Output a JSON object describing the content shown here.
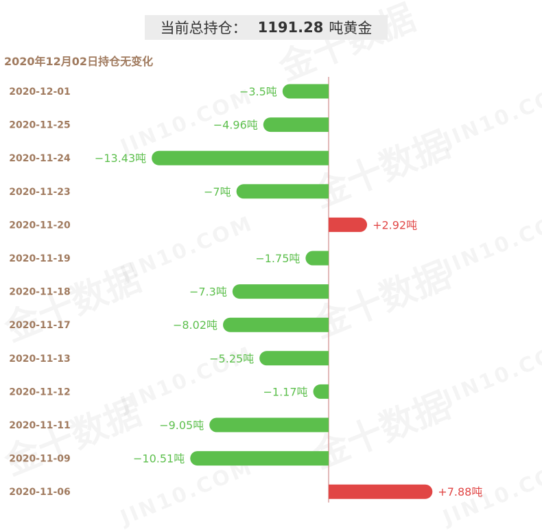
{
  "header": {
    "label": "当前总持仓：",
    "value": "1191.28",
    "unit": "吨黄金"
  },
  "subtitle": "2020年12月02日持仓无变化",
  "watermark": {
    "cn": "金十数据",
    "en": "JIN10.COM"
  },
  "colors": {
    "negative": "#5cbf4c",
    "positive": "#e14645",
    "date_label": "#a07a5e",
    "axis": "#d8a0a0"
  },
  "chart_data": {
    "type": "bar",
    "orientation": "horizontal",
    "unit": "吨",
    "categories": [
      "2020-12-01",
      "2020-11-25",
      "2020-11-24",
      "2020-11-23",
      "2020-11-20",
      "2020-11-19",
      "2020-11-18",
      "2020-11-17",
      "2020-11-13",
      "2020-11-12",
      "2020-11-11",
      "2020-11-09",
      "2020-11-06"
    ],
    "values": [
      -3.5,
      -4.96,
      -13.43,
      -7,
      2.92,
      -1.75,
      -7.3,
      -8.02,
      -5.25,
      -1.17,
      -9.05,
      -10.51,
      7.88
    ],
    "labels": [
      "−3.5吨",
      "−4.96吨",
      "−13.43吨",
      "−7吨",
      "+2.92吨",
      "−1.75吨",
      "−7.3吨",
      "−8.02吨",
      "−5.25吨",
      "−1.17吨",
      "−9.05吨",
      "−10.51吨",
      "+7.88吨"
    ],
    "title": "",
    "xlabel": "",
    "ylabel": "",
    "grid": false,
    "legend": false
  }
}
